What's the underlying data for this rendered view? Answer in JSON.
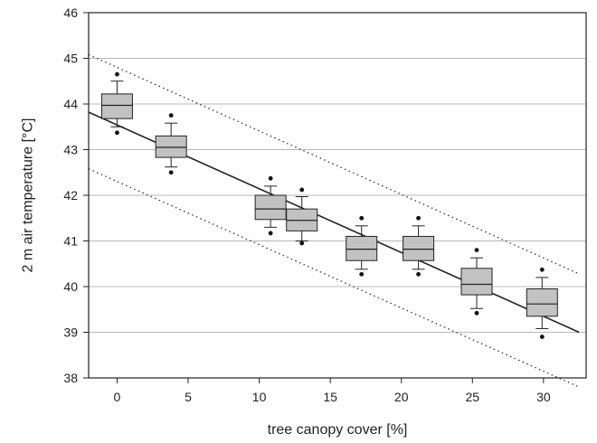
{
  "chart_data": {
    "type": "box",
    "title": "",
    "xlabel": "tree canopy cover [%]",
    "ylabel": "2 m air temperature [°C]",
    "xlim": [
      -2,
      33
    ],
    "ylim": [
      38,
      46
    ],
    "xticks": [
      0,
      5,
      10,
      15,
      20,
      25,
      30
    ],
    "yticks": [
      38,
      39,
      40,
      41,
      42,
      43,
      44,
      45,
      46
    ],
    "grid": "horizontal",
    "boxes": [
      {
        "x": 0,
        "whisker_low": 43.5,
        "q1": 43.68,
        "median": 43.97,
        "q3": 44.22,
        "whisker_high": 44.5,
        "outliers": [
          43.37,
          44.65
        ]
      },
      {
        "x": 3.8,
        "whisker_low": 42.62,
        "q1": 42.83,
        "median": 43.05,
        "q3": 43.3,
        "whisker_high": 43.58,
        "outliers": [
          42.5,
          43.75
        ]
      },
      {
        "x": 10.8,
        "whisker_low": 41.3,
        "q1": 41.47,
        "median": 41.7,
        "q3": 42.0,
        "whisker_high": 42.2,
        "outliers": [
          41.17,
          42.37
        ]
      },
      {
        "x": 13.0,
        "whisker_low": 41.0,
        "q1": 41.22,
        "median": 41.45,
        "q3": 41.7,
        "whisker_high": 41.97,
        "outliers": [
          40.95,
          42.12
        ]
      },
      {
        "x": 17.2,
        "whisker_low": 40.38,
        "q1": 40.57,
        "median": 40.82,
        "q3": 41.1,
        "whisker_high": 41.33,
        "outliers": [
          40.27,
          41.5
        ]
      },
      {
        "x": 21.2,
        "whisker_low": 40.38,
        "q1": 40.57,
        "median": 40.82,
        "q3": 41.1,
        "whisker_high": 41.33,
        "outliers": [
          40.27,
          41.5
        ]
      },
      {
        "x": 25.3,
        "whisker_low": 39.52,
        "q1": 39.82,
        "median": 40.05,
        "q3": 40.4,
        "whisker_high": 40.63,
        "outliers": [
          39.42,
          40.8
        ]
      },
      {
        "x": 29.9,
        "whisker_low": 39.08,
        "q1": 39.35,
        "median": 39.62,
        "q3": 39.95,
        "whisker_high": 40.2,
        "outliers": [
          38.9,
          40.37
        ]
      }
    ],
    "regression_line": {
      "x": [
        -2,
        32.5
      ],
      "y": [
        43.82,
        39.0
      ]
    },
    "prediction_bounds": [
      {
        "x": [
          -2,
          32.5
        ],
        "y": [
          45.08,
          40.28
        ]
      },
      {
        "x": [
          -2,
          32.5
        ],
        "y": [
          42.58,
          37.8
        ]
      }
    ],
    "colors": {
      "box_fill": "#c2c2c2",
      "line": "#222222",
      "grid": "#b8b8b8"
    }
  }
}
